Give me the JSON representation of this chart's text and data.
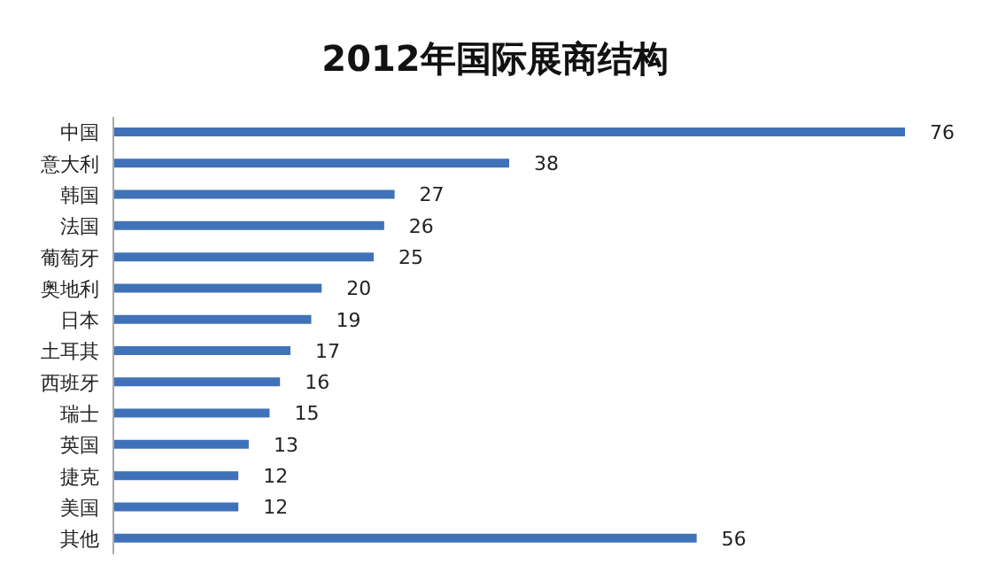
{
  "chart_data": {
    "type": "bar",
    "orientation": "horizontal",
    "title": "2012年国际展商结构",
    "categories": [
      "中国",
      "意大利",
      "韩国",
      "法国",
      "葡萄牙",
      "奥地利",
      "日本",
      "土耳其",
      "西班牙",
      "瑞士",
      "英国",
      "捷克",
      "美国",
      "其他"
    ],
    "values": [
      76,
      38,
      27,
      26,
      25,
      20,
      19,
      17,
      16,
      15,
      13,
      12,
      12,
      56
    ],
    "color": "#3f72b8",
    "data_labels": true
  }
}
